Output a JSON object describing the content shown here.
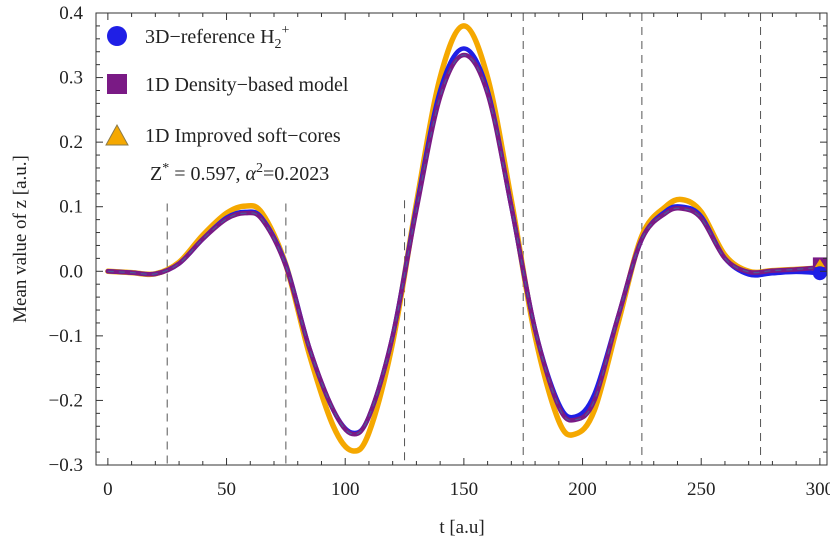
{
  "chart_data": {
    "type": "line",
    "title": "",
    "xlabel": "t  [a.u]",
    "ylabel": "Mean value  of  z   [a.u.]",
    "xlim": [
      -5,
      303
    ],
    "ylim": [
      -0.3,
      0.4
    ],
    "xticks": [
      0,
      50,
      100,
      150,
      200,
      250,
      300
    ],
    "yticks": [
      -0.3,
      -0.2,
      -0.1,
      0.0,
      0.1,
      0.2,
      0.3,
      0.4
    ],
    "xtick_labels": [
      "0",
      "50",
      "100",
      "150",
      "200",
      "250",
      "300"
    ],
    "ytick_labels": [
      "−0.3",
      "−0.2",
      "−0.1",
      "0.0",
      "0.1",
      "0.2",
      "0.3",
      "0.4"
    ],
    "grid": false,
    "vertical_dashed_lines": [
      25,
      75,
      125,
      175,
      225,
      275
    ],
    "legend_position": "top-left",
    "annotation": {
      "prefix": "Z",
      "prefix_sup": "*",
      "middle": " = 0.597, ",
      "alpha": "α",
      "alpha_sup": "2",
      "suffix": "=0.2023"
    },
    "x": [
      0,
      10,
      20,
      30,
      40,
      50,
      58,
      65,
      75,
      85,
      95,
      103,
      110,
      120,
      130,
      140,
      150,
      160,
      170,
      180,
      190,
      197,
      205,
      215,
      225,
      235,
      242,
      250,
      260,
      270,
      280,
      290,
      300
    ],
    "series": [
      {
        "name": "3D−reference H",
        "name_sub": "2",
        "name_sup": "+",
        "color": "#1f1fe6",
        "marker": "circle",
        "values": [
          0.0,
          -0.002,
          -0.004,
          0.012,
          0.05,
          0.083,
          0.092,
          0.082,
          0.01,
          -0.12,
          -0.215,
          -0.25,
          -0.225,
          -0.1,
          0.1,
          0.28,
          0.345,
          0.28,
          0.1,
          -0.09,
          -0.205,
          -0.225,
          -0.19,
          -0.07,
          0.05,
          0.093,
          0.1,
          0.085,
          0.02,
          -0.005,
          -0.003,
          -0.001,
          -0.003
        ]
      },
      {
        "name": "1D Density−based model",
        "color": "#7a1a85",
        "marker": "square",
        "values": [
          0.0,
          -0.002,
          -0.004,
          0.012,
          0.05,
          0.081,
          0.09,
          0.08,
          0.008,
          -0.12,
          -0.215,
          -0.252,
          -0.225,
          -0.1,
          0.095,
          0.27,
          0.335,
          0.275,
          0.1,
          -0.09,
          -0.21,
          -0.23,
          -0.2,
          -0.07,
          0.05,
          0.09,
          0.097,
          0.082,
          0.02,
          -0.001,
          0.001,
          0.003,
          0.006
        ]
      },
      {
        "name": "1D Improved soft−cores",
        "color": "#f5a800",
        "marker": "triangle",
        "values": [
          0.0,
          -0.002,
          -0.004,
          0.014,
          0.056,
          0.09,
          0.101,
          0.09,
          0.01,
          -0.13,
          -0.24,
          -0.278,
          -0.25,
          -0.11,
          0.105,
          0.3,
          0.38,
          0.3,
          0.11,
          -0.1,
          -0.232,
          -0.252,
          -0.215,
          -0.08,
          0.055,
          0.1,
          0.111,
          0.092,
          0.025,
          0.0,
          0.001,
          0.003,
          0.005
        ]
      }
    ],
    "end_markers_at_x": 300
  }
}
